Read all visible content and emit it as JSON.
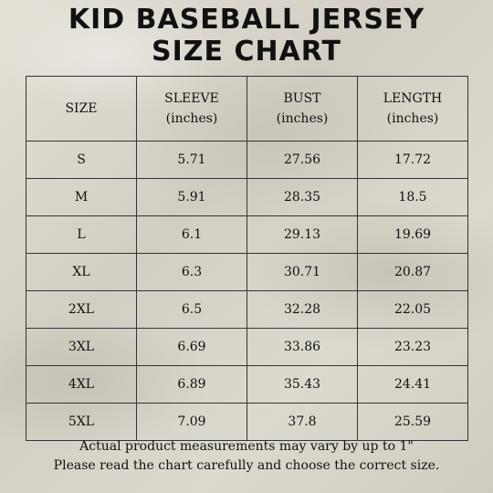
{
  "title": {
    "line1": "KID BASEBALL JERSEY",
    "line2": "SIZE CHART"
  },
  "table": {
    "headers": [
      {
        "label": "SIZE",
        "unit": ""
      },
      {
        "label": "SLEEVE",
        "unit": "(inches)"
      },
      {
        "label": "BUST",
        "unit": "(inches)"
      },
      {
        "label": "LENGTH",
        "unit": "(inches)"
      }
    ],
    "rows": [
      [
        "S",
        "5.71",
        "27.56",
        "17.72"
      ],
      [
        "M",
        "5.91",
        "28.35",
        "18.5"
      ],
      [
        "L",
        "6.1",
        "29.13",
        "19.69"
      ],
      [
        "XL",
        "6.3",
        "30.71",
        "20.87"
      ],
      [
        "2XL",
        "6.5",
        "32.28",
        "22.05"
      ],
      [
        "3XL",
        "6.69",
        "33.86",
        "23.23"
      ],
      [
        "4XL",
        "6.89",
        "35.43",
        "24.41"
      ],
      [
        "5XL",
        "7.09",
        "37.8",
        "25.59"
      ]
    ]
  },
  "footer": {
    "line1": "Actual product measurements may vary by up to 1\"",
    "line2": "Please read the chart carefully and choose the correct size."
  }
}
